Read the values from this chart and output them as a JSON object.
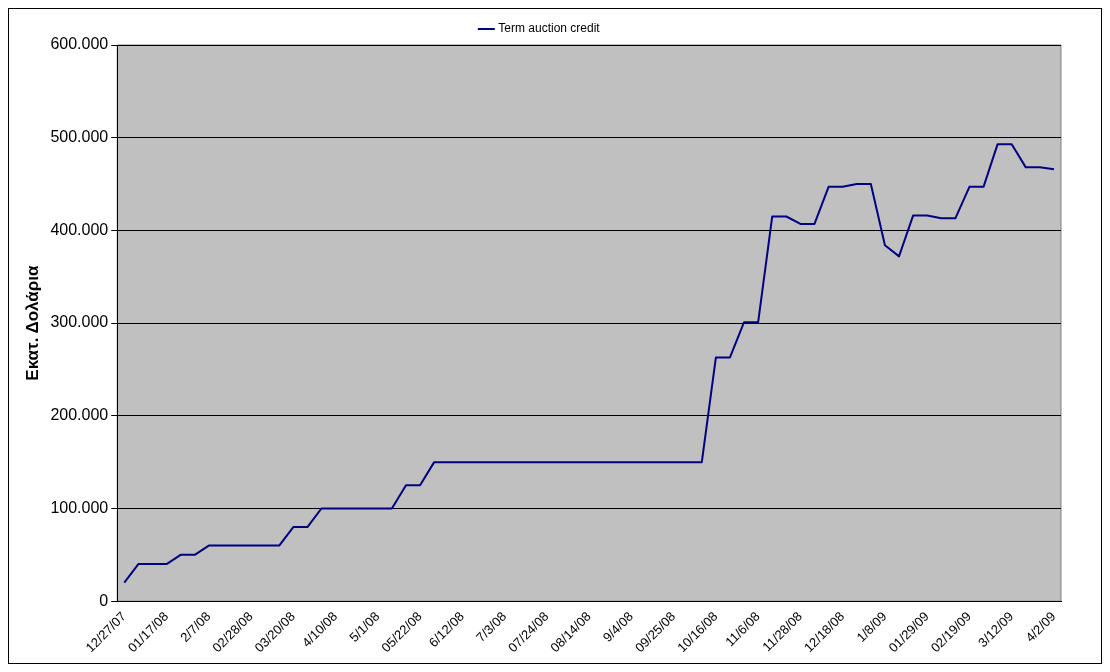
{
  "chart_data": {
    "type": "line",
    "ylabel": "Εκατ. Δολάρια",
    "categories": [
      "12/27/07",
      null,
      null,
      "01/17/08",
      null,
      null,
      "2/7/08",
      null,
      null,
      "02/28/08",
      null,
      null,
      "03/20/08",
      null,
      null,
      "4/10/08",
      null,
      null,
      "5/1/08",
      null,
      null,
      "05/22/08",
      null,
      null,
      "6/12/08",
      null,
      null,
      "7/3/08",
      null,
      null,
      "07/24/08",
      null,
      null,
      "08/14/08",
      null,
      null,
      "9/4/08",
      null,
      null,
      "09/25/08",
      null,
      null,
      "10/16/08",
      null,
      null,
      "11/6/08",
      null,
      null,
      "11/28/08",
      null,
      null,
      "12/18/08",
      null,
      null,
      "1/8/09",
      null,
      null,
      "01/29/09",
      null,
      null,
      "02/19/09",
      null,
      null,
      "3/12/09",
      null,
      null,
      "4/2/09"
    ],
    "series": [
      {
        "name": "Term auction credit",
        "color": "#000080",
        "values": [
          20000,
          40000,
          40000,
          40000,
          50000,
          50000,
          60000,
          60000,
          60000,
          60000,
          60000,
          60000,
          80000,
          80000,
          100000,
          100000,
          100000,
          100000,
          100000,
          100000,
          125000,
          125000,
          150000,
          150000,
          150000,
          150000,
          150000,
          150000,
          150000,
          150000,
          150000,
          150000,
          150000,
          150000,
          150000,
          150000,
          150000,
          150000,
          150000,
          150000,
          150000,
          150000,
          263000,
          263000,
          301000,
          301000,
          415000,
          415000,
          407000,
          407000,
          447000,
          447000,
          450000,
          450000,
          384000,
          372000,
          416000,
          416000,
          413000,
          413000,
          447000,
          447000,
          493000,
          493000,
          468000,
          468000,
          466000
        ]
      }
    ],
    "ylim": [
      0,
      600000
    ],
    "yticks": [
      0,
      {
        "value": 100000,
        "label": "100.000"
      },
      {
        "value": 200000,
        "label": "200.000"
      },
      {
        "value": 300000,
        "label": "300.000"
      },
      {
        "value": 400000,
        "label": "400.000"
      },
      {
        "value": 500000,
        "label": "500.000"
      },
      {
        "value": 600000,
        "label": "600.000"
      }
    ],
    "grid": "y",
    "legend": "top",
    "marker": "none",
    "line_style": "solid"
  }
}
